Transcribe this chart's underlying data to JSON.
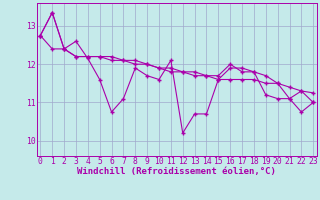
{
  "xlabel": "Windchill (Refroidissement éolien,°C)",
  "background_color": "#c5eaea",
  "grid_color": "#a0a8cc",
  "line_color": "#aa00aa",
  "x_ticks": [
    0,
    1,
    2,
    3,
    4,
    5,
    6,
    7,
    8,
    9,
    10,
    11,
    12,
    13,
    14,
    15,
    16,
    17,
    18,
    19,
    20,
    21,
    22,
    23
  ],
  "y_ticks": [
    10,
    11,
    12,
    13
  ],
  "ylim": [
    9.6,
    13.6
  ],
  "xlim": [
    -0.3,
    23.3
  ],
  "series": [
    [
      12.75,
      13.35,
      12.4,
      12.6,
      12.15,
      11.6,
      10.75,
      11.1,
      11.9,
      11.7,
      11.6,
      12.1,
      10.2,
      10.7,
      10.7,
      11.6,
      11.9,
      11.9,
      11.8,
      11.2,
      11.1,
      11.1,
      10.75,
      11.0
    ],
    [
      12.75,
      13.35,
      12.4,
      12.2,
      12.2,
      12.2,
      12.2,
      12.1,
      12.1,
      12.0,
      11.9,
      11.8,
      11.8,
      11.7,
      11.7,
      11.6,
      11.6,
      11.6,
      11.6,
      11.5,
      11.5,
      11.4,
      11.3,
      11.25
    ],
    [
      12.75,
      12.4,
      12.4,
      12.2,
      12.2,
      12.2,
      12.1,
      12.1,
      12.0,
      12.0,
      11.9,
      11.9,
      11.8,
      11.8,
      11.7,
      11.7,
      12.0,
      11.8,
      11.8,
      11.7,
      11.5,
      11.1,
      11.3,
      11.0
    ]
  ],
  "tick_fontsize": 5.8,
  "xlabel_fontsize": 6.5
}
